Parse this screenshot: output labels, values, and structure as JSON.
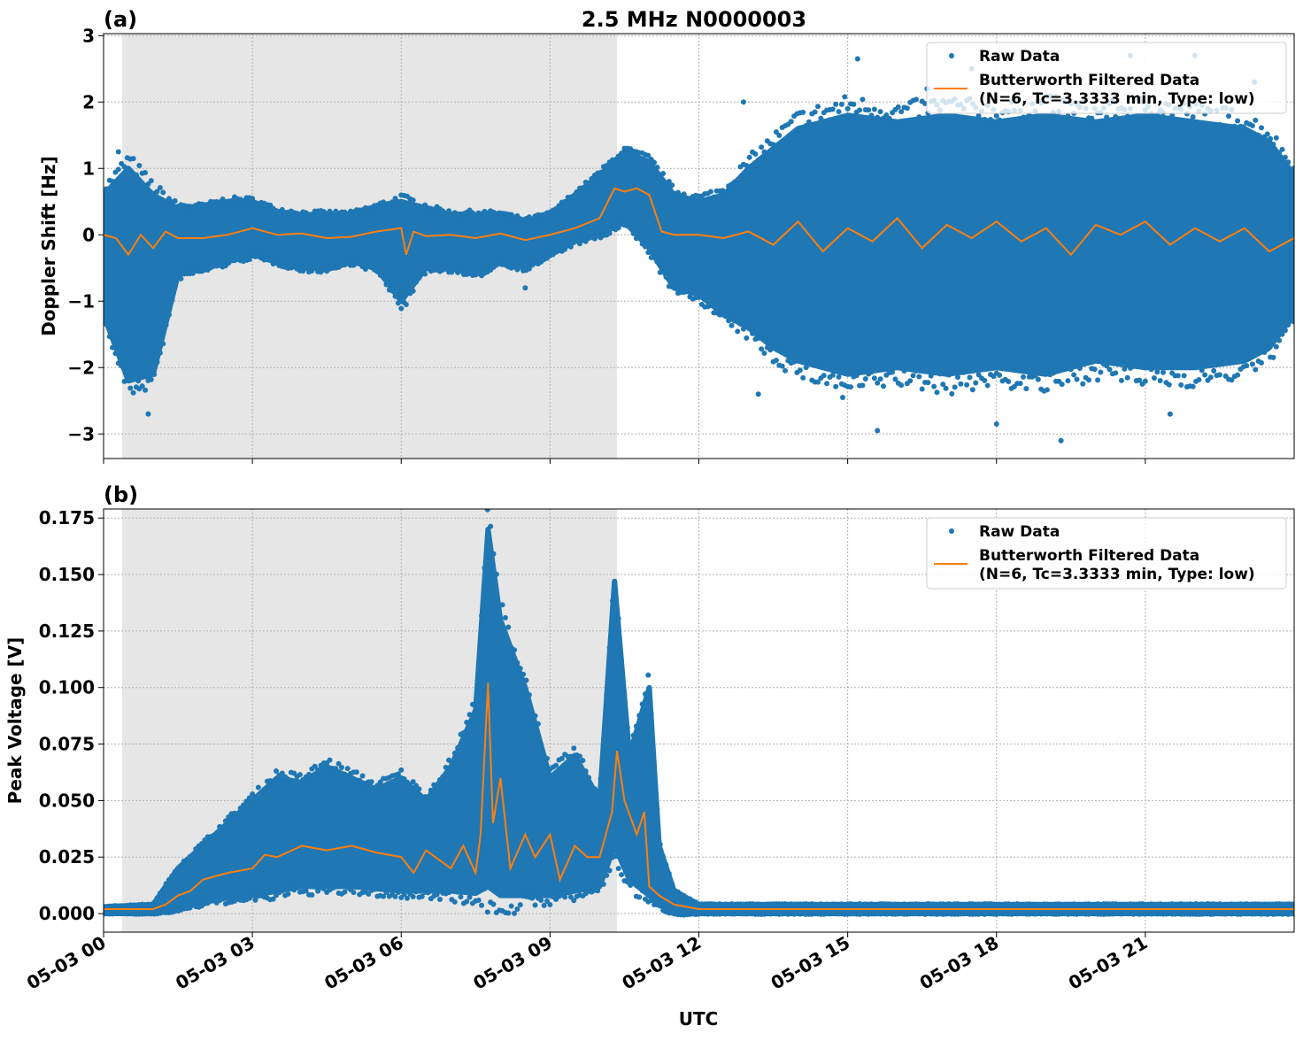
{
  "title": "2.5 MHz N0000003",
  "colors": {
    "raw": "#1f77b4",
    "filtered": "#ff7f0e",
    "shade": "#e6e6e6",
    "grid": "#b0b0b0"
  },
  "chart_data": [
    {
      "panel_label": "(a)",
      "type": "scatter",
      "ylabel": "Doppler Shift [Hz]",
      "xlabel": "",
      "xlim_hours": [
        0,
        24
      ],
      "ylim": [
        -3.37,
        3.03
      ],
      "yticks": [
        3,
        2,
        1,
        0,
        -1,
        -2,
        -3
      ],
      "ytick_labels": [
        "3",
        "2",
        "1",
        "0",
        "−1",
        "−2",
        "−3"
      ],
      "grid": true,
      "shaded_region_hours": [
        0.375,
        10.35
      ],
      "legend": {
        "placement": "top-right",
        "entries": [
          "Raw Data",
          "Butterworth Filtered Data",
          "(N=6, Tc=3.3333 min, Type: low)"
        ]
      },
      "series": [
        {
          "name": "Butterworth Filtered Data (N=6, Tc=3.3333 min, Type: low)",
          "type": "line",
          "x": [
            0,
            0.25,
            0.5,
            0.75,
            1,
            1.25,
            1.5,
            2,
            2.5,
            3,
            3.5,
            4,
            4.5,
            5,
            5.5,
            6,
            6.1,
            6.25,
            6.5,
            7,
            7.5,
            8,
            8.5,
            9,
            9.5,
            10,
            10.3,
            10.5,
            10.75,
            11,
            11.25,
            11.5,
            12,
            12.5,
            13,
            13.5,
            14,
            14.5,
            15,
            15.5,
            16,
            16.5,
            17,
            17.5,
            18,
            18.5,
            19,
            19.5,
            20,
            20.5,
            21,
            21.5,
            22,
            22.5,
            23,
            23.5,
            24
          ],
          "y": [
            0,
            -0.05,
            -0.3,
            0,
            -0.2,
            0.05,
            -0.05,
            -0.05,
            0,
            0.1,
            0,
            0.02,
            -0.05,
            -0.03,
            0.05,
            0.1,
            -0.3,
            0.05,
            -0.02,
            0,
            -0.05,
            0.02,
            -0.08,
            0,
            0.1,
            0.25,
            0.7,
            0.65,
            0.7,
            0.6,
            0.05,
            0,
            0,
            -0.05,
            0.05,
            -0.15,
            0.2,
            -0.25,
            0.1,
            -0.1,
            0.25,
            -0.2,
            0.15,
            -0.05,
            0.2,
            -0.1,
            0.1,
            -0.3,
            0.15,
            0,
            0.2,
            -0.15,
            0.1,
            -0.1,
            0.1,
            -0.25,
            -0.05
          ]
        },
        {
          "name": "Raw Data",
          "type": "scatter-envelope",
          "x": [
            0,
            0.5,
            1,
            1.5,
            2,
            2.5,
            3,
            3.5,
            4,
            4.5,
            5,
            5.5,
            6,
            6.5,
            7,
            7.5,
            8,
            8.5,
            9,
            9.5,
            10,
            10.5,
            11,
            11.5,
            12,
            12.5,
            13,
            13.5,
            14,
            15,
            16,
            17,
            18,
            19,
            20,
            21,
            22,
            23,
            23.5,
            24
          ],
          "lower": [
            -1.2,
            -2.2,
            -2.1,
            -0.6,
            -0.5,
            -0.4,
            -0.3,
            -0.4,
            -0.5,
            -0.5,
            -0.4,
            -0.5,
            -1.0,
            -0.5,
            -0.5,
            -0.6,
            -0.4,
            -0.5,
            -0.3,
            -0.1,
            0,
            0.2,
            -0.2,
            -0.8,
            -0.9,
            -1.2,
            -1.4,
            -1.7,
            -1.9,
            -2.1,
            -2.0,
            -2.1,
            -2.0,
            -2.1,
            -1.9,
            -2.0,
            -2.0,
            -1.9,
            -1.7,
            -1.2
          ],
          "upper": [
            0.6,
            1.0,
            0.6,
            0.4,
            0.4,
            0.5,
            0.5,
            0.35,
            0.3,
            0.3,
            0.3,
            0.4,
            0.5,
            0.4,
            0.3,
            0.3,
            0.3,
            0.2,
            0.3,
            0.6,
            0.9,
            1.25,
            1.1,
            0.6,
            0.5,
            0.6,
            1.0,
            1.3,
            1.6,
            1.8,
            1.7,
            1.8,
            1.7,
            1.8,
            1.7,
            1.8,
            1.7,
            1.6,
            1.4,
            0.9
          ],
          "outliers": [
            [
              0.3,
              1.25
            ],
            [
              0.7,
              -2.2
            ],
            [
              0.9,
              -2.7
            ],
            [
              6.1,
              -1.05
            ],
            [
              8.5,
              -0.8
            ],
            [
              12.9,
              2.0
            ],
            [
              13.2,
              -2.4
            ],
            [
              14.9,
              -2.45
            ],
            [
              15.2,
              2.65
            ],
            [
              15.6,
              -2.95
            ],
            [
              16.6,
              2.2
            ],
            [
              17.5,
              2.5
            ],
            [
              18.0,
              -2.85
            ],
            [
              19.3,
              -3.1
            ],
            [
              20.7,
              2.7
            ],
            [
              21.5,
              -2.7
            ],
            [
              22.0,
              2.7
            ],
            [
              23.2,
              2.3
            ]
          ]
        }
      ]
    },
    {
      "panel_label": "(b)",
      "type": "scatter",
      "ylabel": "Peak Voltage [V]",
      "xlabel": "UTC",
      "xlim_hours": [
        0,
        24
      ],
      "ylim": [
        -0.0082,
        0.179
      ],
      "yticks": [
        0,
        0.025,
        0.05,
        0.075,
        0.1,
        0.125,
        0.15,
        0.175
      ],
      "ytick_labels": [
        "0.000",
        "0.025",
        "0.050",
        "0.075",
        "0.100",
        "0.125",
        "0.150",
        "0.175"
      ],
      "xtick_labels": [
        "05-03 00",
        "05-03 03",
        "05-03 06",
        "05-03 09",
        "05-03 12",
        "05-03 15",
        "05-03 18",
        "05-03 21"
      ],
      "xticks_hours": [
        0,
        3,
        6,
        9,
        12,
        15,
        18,
        21
      ],
      "grid": true,
      "shaded_region_hours": [
        0.375,
        10.35
      ],
      "legend": {
        "placement": "top-right",
        "entries": [
          "Raw Data",
          "Butterworth Filtered Data",
          "(N=6, Tc=3.3333 min, Type: low)"
        ]
      },
      "series": [
        {
          "name": "Butterworth Filtered Data (N=6, Tc=3.3333 min, Type: low)",
          "type": "line",
          "x": [
            0,
            1,
            1.25,
            1.5,
            1.75,
            2,
            2.5,
            3,
            3.25,
            3.5,
            4,
            4.5,
            5,
            5.5,
            6,
            6.25,
            6.5,
            7,
            7.25,
            7.5,
            7.6,
            7.75,
            7.85,
            8.0,
            8.2,
            8.5,
            8.7,
            9.0,
            9.2,
            9.5,
            9.75,
            10.0,
            10.25,
            10.35,
            10.5,
            10.75,
            10.9,
            11.0,
            11.2,
            11.5,
            12,
            24
          ],
          "y": [
            0.002,
            0.002,
            0.004,
            0.008,
            0.01,
            0.015,
            0.018,
            0.02,
            0.026,
            0.025,
            0.03,
            0.028,
            0.03,
            0.027,
            0.025,
            0.018,
            0.028,
            0.02,
            0.03,
            0.018,
            0.035,
            0.102,
            0.04,
            0.06,
            0.02,
            0.035,
            0.025,
            0.035,
            0.015,
            0.03,
            0.025,
            0.025,
            0.045,
            0.072,
            0.05,
            0.035,
            0.045,
            0.012,
            0.008,
            0.004,
            0.002,
            0.002
          ]
        },
        {
          "name": "Raw Data",
          "type": "scatter-envelope",
          "x": [
            0,
            1,
            1.5,
            2,
            2.5,
            3,
            3.5,
            4,
            4.5,
            5,
            5.5,
            6,
            6.5,
            7,
            7.5,
            7.75,
            8,
            8.5,
            9,
            9.5,
            10,
            10.3,
            10.6,
            11,
            11.2,
            11.5,
            12,
            24
          ],
          "lower": [
            0,
            0,
            0.002,
            0.005,
            0.007,
            0.008,
            0.01,
            0.012,
            0.012,
            0.012,
            0.011,
            0.01,
            0.01,
            0.01,
            0.009,
            0.012,
            0.008,
            0.008,
            0.008,
            0.01,
            0.012,
            0.03,
            0.015,
            0.008,
            0.004,
            0,
            0,
            0
          ],
          "upper": [
            0.003,
            0.004,
            0.02,
            0.03,
            0.04,
            0.05,
            0.06,
            0.058,
            0.065,
            0.06,
            0.055,
            0.06,
            0.05,
            0.065,
            0.09,
            0.17,
            0.13,
            0.1,
            0.06,
            0.07,
            0.05,
            0.147,
            0.07,
            0.1,
            0.03,
            0.01,
            0.004,
            0.004
          ],
          "outliers": []
        }
      ]
    }
  ]
}
